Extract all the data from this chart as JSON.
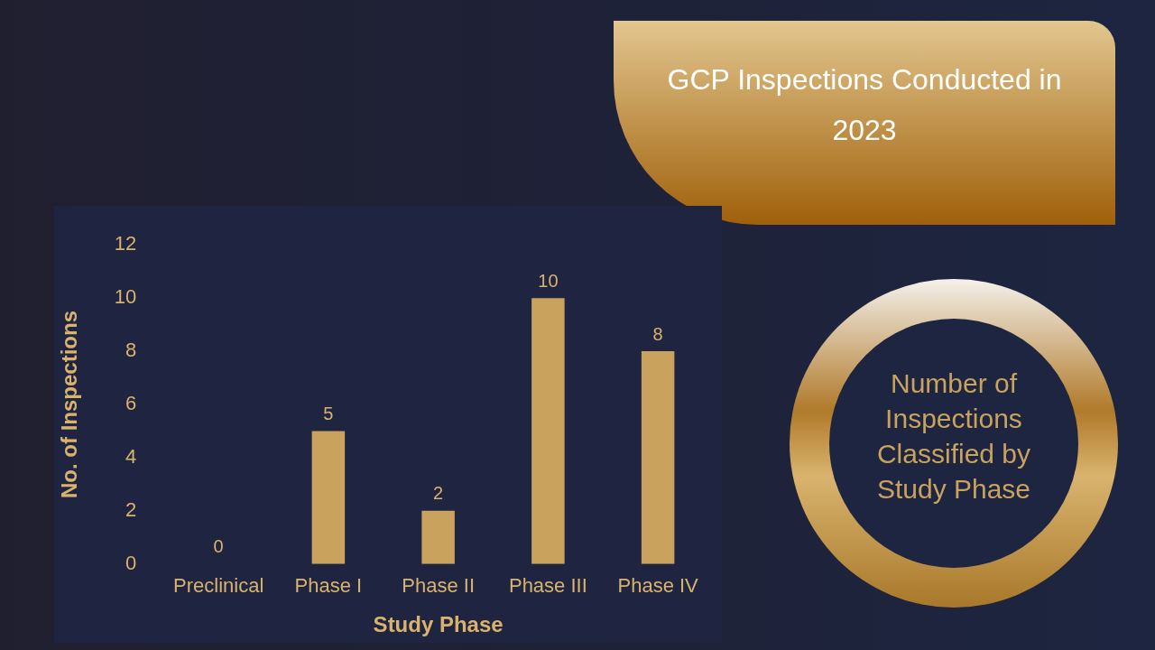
{
  "chart_data": {
    "type": "bar",
    "title": "GCP Inspections Conducted in 2023",
    "subtitle": "Number of Inspections Classified by Study Phase",
    "xlabel": "Study Phase",
    "ylabel": "No. of Inspections",
    "categories": [
      "Preclinical",
      "Phase I",
      "Phase II",
      "Phase III",
      "Phase IV"
    ],
    "values": [
      0,
      5,
      2,
      10,
      8
    ],
    "color": "#c9a25e",
    "ylim": [
      0,
      12
    ],
    "yticks": [
      0,
      2,
      4,
      6,
      8,
      10,
      12
    ],
    "grid": false,
    "legend": false,
    "data_labels": true
  }
}
